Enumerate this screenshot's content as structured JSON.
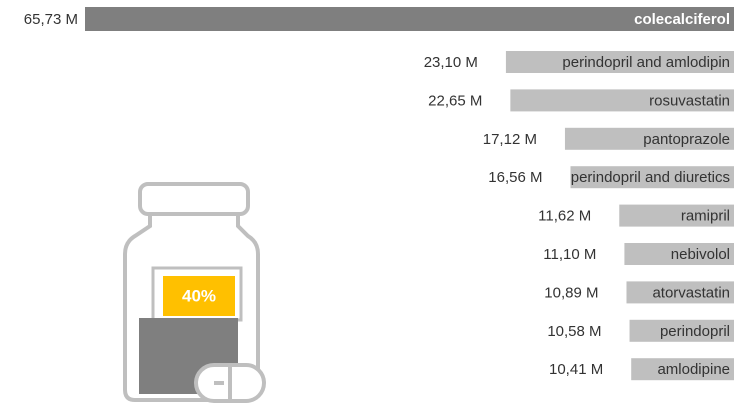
{
  "chart_data": {
    "type": "bar",
    "categories": [
      "colecalciferol",
      "perindopril and amlodipin",
      "rosuvastatin",
      "pantoprazole",
      "perindopril and diuretics",
      "ramipril",
      "nebivolol",
      "atorvastatin",
      "perindopril",
      "amlodipine"
    ],
    "values": [
      65.73,
      23.1,
      22.65,
      17.12,
      16.56,
      11.62,
      11.1,
      10.89,
      10.58,
      10.41
    ],
    "value_labels": [
      "65,73 M",
      "23,10 M",
      "22,65 M",
      "17,12 M",
      "16,56 M",
      "11,62 M",
      "11,10 M",
      "10,89 M",
      "10,58 M",
      "10,41 M"
    ],
    "colors": [
      "#7f7f7f",
      "#bfbfbf",
      "#bfbfbf",
      "#bfbfbf",
      "#bfbfbf",
      "#bfbfbf",
      "#bfbfbf",
      "#bfbfbf",
      "#bfbfbf",
      "#bfbfbf"
    ],
    "annotation": "40%"
  }
}
